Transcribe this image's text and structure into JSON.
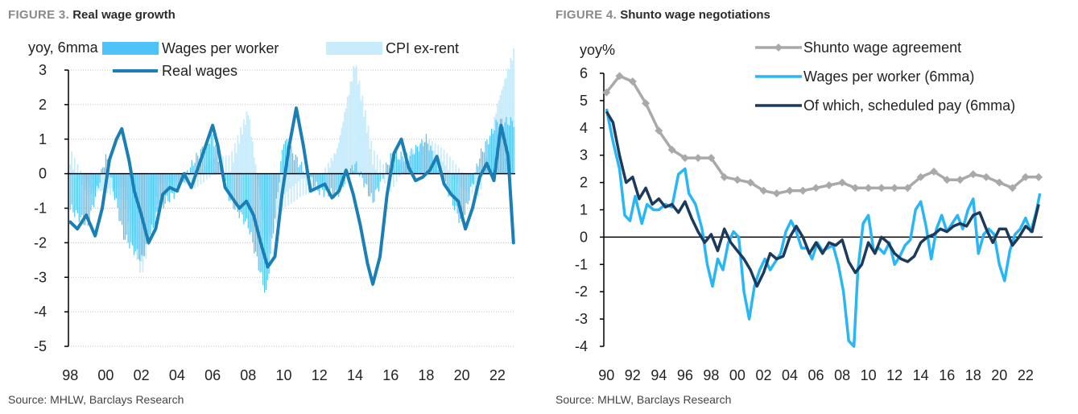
{
  "chart_data": [
    {
      "type": "bar+line",
      "figure_label": "FIGURE 3.",
      "title": "Real wage growth",
      "ylabel": "yoy, 6mma",
      "ylim": [
        -5,
        3
      ],
      "yticks": [
        "3",
        "2",
        "1",
        "0",
        "-1",
        "-2",
        "-3",
        "-4",
        "-5"
      ],
      "xlim": [
        1997.9,
        2023.0
      ],
      "xticks": [
        "98",
        "00",
        "02",
        "04",
        "06",
        "08",
        "10",
        "12",
        "14",
        "16",
        "18",
        "20",
        "22"
      ],
      "source": "Source: MHLW, Barclays Research",
      "colors": {
        "wages": "#4fc3f7",
        "cpi": "#c8ecfb",
        "real": "#1a7fb5",
        "zero": "#000000",
        "grid": "#bfbfbf"
      },
      "series": [
        {
          "name": "Wages per worker",
          "kind": "bar",
          "x": [
            1998,
            1999,
            2000,
            2001,
            2002,
            2003,
            2004,
            2005,
            2006,
            2007,
            2008,
            2009,
            2010,
            2011,
            2012,
            2013,
            2014,
            2015,
            2016,
            2017,
            2018,
            2019,
            2020,
            2021,
            2022,
            2022.9
          ],
          "values": [
            -1.0,
            -1.5,
            0.5,
            -1.8,
            -2.5,
            -1.0,
            -0.5,
            0.4,
            1.1,
            -0.8,
            -1.5,
            -3.5,
            1.0,
            0.2,
            -0.5,
            -0.6,
            0.3,
            -0.8,
            0.5,
            0.5,
            1.0,
            -0.2,
            -1.5,
            0.5,
            1.5,
            1.5
          ]
        },
        {
          "name": "CPI ex-rent",
          "kind": "bar",
          "x": [
            1998,
            1999,
            2000,
            2001,
            2002,
            2003,
            2004,
            2005,
            2006,
            2007,
            2008,
            2009,
            2010,
            2011,
            2012,
            2013,
            2014,
            2015,
            2016,
            2017,
            2018,
            2019,
            2020,
            2021,
            2022,
            2022.9
          ],
          "values": [
            0.5,
            -0.5,
            -0.5,
            -0.6,
            -2.8,
            -0.5,
            -0.2,
            -0.3,
            0.2,
            0.3,
            1.8,
            -2.0,
            -0.8,
            -0.4,
            -0.3,
            0.7,
            3.2,
            0.5,
            -0.3,
            0.5,
            1.0,
            0.5,
            -0.2,
            -0.5,
            2.0,
            3.5
          ]
        },
        {
          "name": "Real wages",
          "kind": "line",
          "x": [
            1998.0,
            1998.4,
            1998.9,
            1999.4,
            1999.8,
            2000.2,
            2000.6,
            2000.9,
            2001.3,
            2001.6,
            2002.0,
            2002.4,
            2002.8,
            2003.2,
            2003.6,
            2004.0,
            2004.4,
            2004.8,
            2005.2,
            2005.6,
            2006.0,
            2006.3,
            2006.7,
            2007.1,
            2007.5,
            2007.9,
            2008.3,
            2008.7,
            2009.1,
            2009.5,
            2009.9,
            2010.3,
            2010.7,
            2011.1,
            2011.5,
            2011.9,
            2012.3,
            2012.7,
            2013.1,
            2013.5,
            2013.9,
            2014.3,
            2014.7,
            2015.0,
            2015.4,
            2015.8,
            2016.2,
            2016.6,
            2017.0,
            2017.4,
            2017.8,
            2018.2,
            2018.6,
            2019.0,
            2019.4,
            2019.8,
            2020.2,
            2020.6,
            2021.0,
            2021.4,
            2021.8,
            2022.2,
            2022.6,
            2022.9
          ],
          "values": [
            -1.4,
            -1.6,
            -1.2,
            -1.8,
            -1.0,
            0.4,
            1.0,
            1.3,
            0.4,
            -0.5,
            -1.2,
            -2.0,
            -1.6,
            -0.6,
            -0.4,
            -0.5,
            0.0,
            -0.4,
            0.2,
            0.8,
            1.4,
            0.8,
            -0.4,
            -0.7,
            -1.0,
            -0.8,
            -1.2,
            -2.0,
            -2.7,
            -2.4,
            -0.6,
            0.8,
            1.9,
            0.8,
            -0.5,
            -0.4,
            -0.3,
            -0.7,
            -0.5,
            0.1,
            -0.6,
            -1.5,
            -2.6,
            -3.2,
            -2.4,
            -0.6,
            0.6,
            1.0,
            0.2,
            -0.2,
            -0.1,
            0.1,
            0.5,
            -0.3,
            -0.6,
            -0.8,
            -1.6,
            -1.0,
            -0.1,
            0.3,
            -0.2,
            1.4,
            0.5,
            -2.0
          ]
        }
      ]
    },
    {
      "type": "line",
      "figure_label": "FIGURE 4.",
      "title": "Shunto wage negotiations",
      "ylabel": "yoy%",
      "ylim": [
        -4,
        6
      ],
      "yticks": [
        "6",
        "5",
        "4",
        "3",
        "2",
        "1",
        "0",
        "-1",
        "-2",
        "-3",
        "-4"
      ],
      "xlim": [
        1989.8,
        2023.3
      ],
      "xticks": [
        "90",
        "92",
        "94",
        "96",
        "98",
        "00",
        "02",
        "04",
        "06",
        "08",
        "10",
        "12",
        "14",
        "16",
        "18",
        "20",
        "22"
      ],
      "source": "Source: MHLW, Barclays Research",
      "colors": {
        "shunto": "#a9a9a9",
        "wages": "#29b6f6",
        "scheduled": "#1b3a5c",
        "zero": "#000000"
      },
      "series": [
        {
          "name": "Shunto wage agreement",
          "marker": "diamond",
          "x": [
            1990,
            1991,
            1992,
            1993,
            1994,
            1995,
            1996,
            1997,
            1998,
            1999,
            2000,
            2001,
            2002,
            2003,
            2004,
            2005,
            2006,
            2007,
            2008,
            2009,
            2010,
            2011,
            2012,
            2013,
            2014,
            2015,
            2016,
            2017,
            2018,
            2019,
            2020,
            2021,
            2022,
            2023
          ],
          "values": [
            5.3,
            5.9,
            5.7,
            4.9,
            3.9,
            3.2,
            2.9,
            2.9,
            2.9,
            2.2,
            2.1,
            2.0,
            1.7,
            1.6,
            1.7,
            1.7,
            1.8,
            1.9,
            2.0,
            1.8,
            1.8,
            1.8,
            1.8,
            1.8,
            2.2,
            2.4,
            2.1,
            2.1,
            2.3,
            2.2,
            2.0,
            1.8,
            2.2,
            2.2
          ]
        },
        {
          "name": "Wages per worker (6mma)",
          "x": [
            1990.0,
            1990.5,
            1991.0,
            1991.4,
            1991.8,
            1992.2,
            1992.7,
            1993.1,
            1993.6,
            1994.0,
            1994.5,
            1995.0,
            1995.5,
            1996.0,
            1996.3,
            1996.8,
            1997.3,
            1997.7,
            1998.1,
            1998.5,
            1998.9,
            1999.3,
            1999.7,
            2000.1,
            2000.5,
            2000.9,
            2001.3,
            2001.7,
            2002.1,
            2002.5,
            2002.9,
            2003.3,
            2003.7,
            2004.1,
            2004.5,
            2004.9,
            2005.3,
            2005.7,
            2006.1,
            2006.5,
            2006.9,
            2007.3,
            2007.7,
            2008.1,
            2008.5,
            2008.9,
            2009.2,
            2009.6,
            2010.0,
            2010.4,
            2010.8,
            2011.2,
            2011.6,
            2012.0,
            2012.4,
            2012.8,
            2013.2,
            2013.6,
            2014.0,
            2014.4,
            2014.8,
            2015.2,
            2015.6,
            2016.0,
            2016.4,
            2016.8,
            2017.2,
            2017.6,
            2018.0,
            2018.4,
            2018.8,
            2019.2,
            2019.6,
            2020.0,
            2020.4,
            2020.8,
            2021.2,
            2021.6,
            2022.0,
            2022.4,
            2022.8,
            2023.1
          ],
          "values": [
            4.7,
            3.5,
            2.5,
            0.8,
            0.6,
            1.5,
            0.5,
            1.2,
            1.0,
            1.0,
            1.2,
            1.1,
            2.3,
            2.5,
            1.6,
            1.2,
            0.3,
            -1.0,
            -1.8,
            -0.8,
            -1.2,
            -0.2,
            0.2,
            0.0,
            -2.0,
            -3.0,
            -1.8,
            -1.2,
            -0.8,
            -1.2,
            -0.9,
            -0.6,
            0.2,
            0.6,
            0.2,
            -0.4,
            -0.4,
            -0.8,
            -0.2,
            -0.5,
            -0.4,
            -0.3,
            -1.0,
            -2.0,
            -3.8,
            -4.0,
            -1.2,
            0.5,
            0.8,
            -0.5,
            -0.4,
            -0.6,
            -0.2,
            -1.0,
            -0.7,
            -0.3,
            -0.1,
            1.0,
            1.3,
            0.4,
            -0.8,
            0.3,
            0.8,
            0.2,
            0.5,
            0.8,
            0.3,
            1.0,
            1.4,
            -0.6,
            0.1,
            0.3,
            0.1,
            -1.0,
            -1.6,
            -0.5,
            0.1,
            0.3,
            0.7,
            0.2,
            0.9,
            1.6
          ]
        },
        {
          "name": "Of which, scheduled pay (6mma)",
          "x": [
            1990.0,
            1990.5,
            1991.0,
            1991.5,
            1992.0,
            1992.5,
            1993.0,
            1993.5,
            1994.0,
            1994.5,
            1995.0,
            1995.5,
            1996.0,
            1996.5,
            1997.0,
            1997.5,
            1998.0,
            1998.5,
            1999.0,
            1999.5,
            2000.0,
            2000.5,
            2001.0,
            2001.5,
            2002.0,
            2002.5,
            2003.0,
            2003.5,
            2004.0,
            2004.5,
            2005.0,
            2005.5,
            2006.0,
            2006.5,
            2007.0,
            2007.5,
            2008.0,
            2008.5,
            2009.0,
            2009.5,
            2010.0,
            2010.5,
            2011.0,
            2011.5,
            2012.0,
            2012.5,
            2013.0,
            2013.5,
            2014.0,
            2014.5,
            2015.0,
            2015.5,
            2016.0,
            2016.5,
            2017.0,
            2017.5,
            2018.0,
            2018.5,
            2019.0,
            2019.5,
            2020.0,
            2020.5,
            2021.0,
            2021.5,
            2022.0,
            2022.5,
            2023.0
          ],
          "values": [
            4.6,
            4.2,
            3.0,
            2.0,
            2.2,
            1.4,
            1.8,
            1.2,
            1.4,
            1.1,
            1.2,
            0.9,
            1.3,
            0.7,
            0.2,
            -0.2,
            0.1,
            -0.5,
            0.3,
            -0.2,
            -0.5,
            -0.8,
            -1.2,
            -1.8,
            -1.3,
            -0.6,
            -0.8,
            -0.7,
            0.0,
            0.4,
            0.0,
            -0.6,
            -0.2,
            -0.6,
            -0.2,
            -0.3,
            -0.1,
            -0.9,
            -1.3,
            -1.0,
            -0.2,
            -0.6,
            0.0,
            -0.2,
            -0.6,
            -0.8,
            -0.9,
            -0.7,
            -0.2,
            0.0,
            0.1,
            0.3,
            0.2,
            0.4,
            0.5,
            0.4,
            0.8,
            0.9,
            0.3,
            -0.2,
            0.3,
            0.3,
            -0.3,
            0.0,
            0.4,
            0.2,
            1.2
          ]
        }
      ]
    }
  ]
}
